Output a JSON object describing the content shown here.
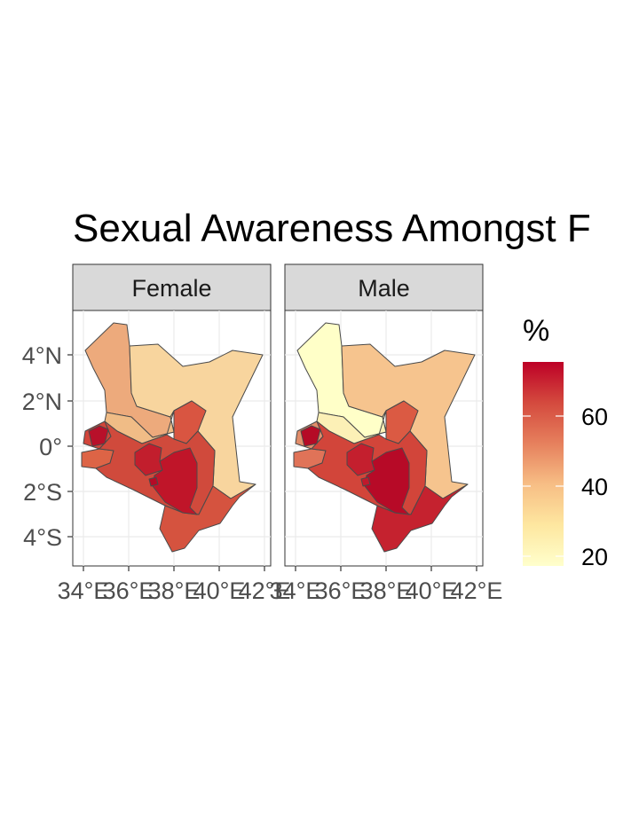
{
  "title": "Sexual Awareness Amongst F",
  "facets": [
    {
      "label": "Female",
      "regions": {
        "north_rift": "#EDAA7C",
        "northeastern": "#F8D59E",
        "central_rift": "#F0BC86",
        "eastern_north": "#D95541",
        "western": "#D2453A",
        "nyanza": "#DD6446",
        "south_rift": "#D04A3C",
        "central": "#C21E2D",
        "lower_eastern": "#C01529",
        "coast": "#D5533F",
        "nairobi": "#B50A26",
        "western_core": "#B8102A"
      }
    },
    {
      "label": "Male",
      "regions": {
        "north_rift": "#FFFFC8",
        "northeastern": "#F6C48E",
        "central_rift": "#FCF0B6",
        "eastern_north": "#DB5A43",
        "western": "#E18D6A",
        "nyanza": "#E07358",
        "south_rift": "#D2453A",
        "central": "#C41F2E",
        "lower_eastern": "#B70A27",
        "coast": "#C5222F",
        "nairobi": "#C0192C",
        "western_core": "#B50A26"
      }
    }
  ],
  "axes": {
    "y_ticks": [
      "4°N",
      "2°N",
      "0°",
      "2°S",
      "4°S"
    ],
    "x_ticks": [
      "34°E",
      "36°E",
      "38°E",
      "40°E",
      "42°E"
    ]
  },
  "legend": {
    "title": "%",
    "ticks": [
      "60",
      "40",
      "20"
    ],
    "colors": [
      "#FFFFCC",
      "#FED976",
      "#FEB24C",
      "#FD8D3C",
      "#F03B20",
      "#BD0026"
    ]
  }
}
